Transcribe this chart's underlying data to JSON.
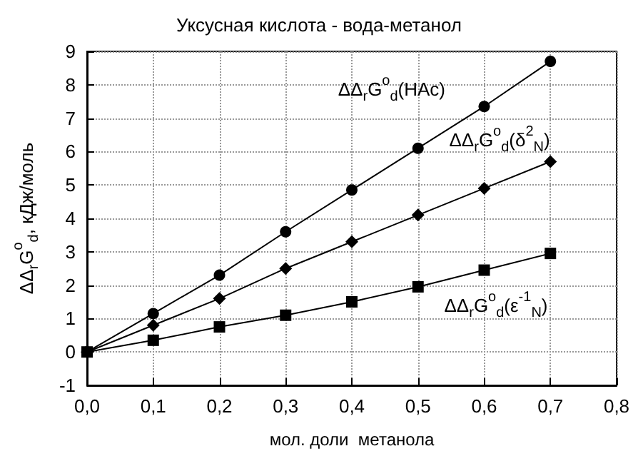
{
  "chart_data": {
    "type": "line",
    "title": "Уксусная кислота - вода-метанол",
    "xlabel": "мол. доли  метанола",
    "ylabel": "ΔΔ$_{r}$G$^{o}$$_{d}$, кДж/моль",
    "x": [
      0,
      0.1,
      0.2,
      0.3,
      0.4,
      0.5,
      0.6,
      0.7
    ],
    "series": [
      {
        "name": "ΔΔ$_{r}$G$^{o}$$_{d}$(HAc)",
        "color": "#000000",
        "marker": "circle",
        "values": [
          0,
          1.15,
          2.3,
          3.6,
          4.85,
          6.1,
          7.35,
          8.7
        ]
      },
      {
        "name": "ΔΔ$_{r}$G$^{o}$$_{d}$(δ$^{2}$$_{N}$)",
        "color": "#000000",
        "marker": "diamond",
        "values": [
          0,
          0.8,
          1.6,
          2.5,
          3.3,
          4.1,
          4.9,
          5.7
        ]
      },
      {
        "name": "ΔΔ$_{r}$G$^{o}$$_{d}$(ε$^{-1}$$_{N}$)",
        "color": "#000000",
        "marker": "square",
        "values": [
          0,
          0.35,
          0.75,
          1.1,
          1.5,
          1.95,
          2.45,
          2.95
        ]
      }
    ],
    "xlim": [
      0,
      0.8
    ],
    "xticks": [
      {
        "value": 0,
        "label": "0,0"
      },
      {
        "value": 0.1,
        "label": "0,1"
      },
      {
        "value": 0.2,
        "label": "0,2"
      },
      {
        "value": 0.3,
        "label": "0,3"
      },
      {
        "value": 0.4,
        "label": "0,4"
      },
      {
        "value": 0.5,
        "label": "0,5"
      },
      {
        "value": 0.6,
        "label": "0,6"
      },
      {
        "value": 0.7,
        "label": "0,7"
      },
      {
        "value": 0.8,
        "label": "0,8"
      }
    ],
    "ylim": [
      -1,
      9
    ],
    "yticks": [
      -1,
      0,
      1,
      2,
      3,
      4,
      5,
      6,
      7,
      8,
      9
    ],
    "grid": true,
    "legend": false,
    "line_style": "solid"
  }
}
